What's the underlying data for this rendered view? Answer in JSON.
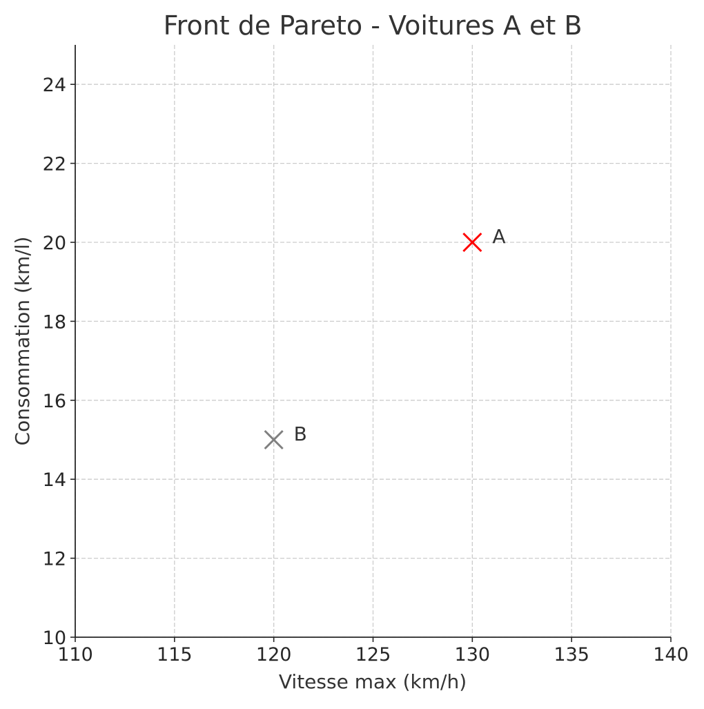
{
  "chart_data": {
    "type": "scatter",
    "title": "Front de Pareto - Voitures A et B",
    "xlabel": "Vitesse max (km/h)",
    "ylabel": "Consommation (km/l)",
    "xlim": [
      110,
      140
    ],
    "ylim": [
      10,
      25
    ],
    "xticks": [
      110,
      115,
      120,
      125,
      130,
      135,
      140
    ],
    "yticks": [
      10,
      12,
      14,
      16,
      18,
      20,
      22,
      24
    ],
    "grid": true,
    "grid_style": "dashed",
    "marker": "x",
    "points": [
      {
        "label": "A",
        "x": 130,
        "y": 20,
        "color": "#ff0000"
      },
      {
        "label": "B",
        "x": 120,
        "y": 15,
        "color": "#808080"
      }
    ]
  }
}
